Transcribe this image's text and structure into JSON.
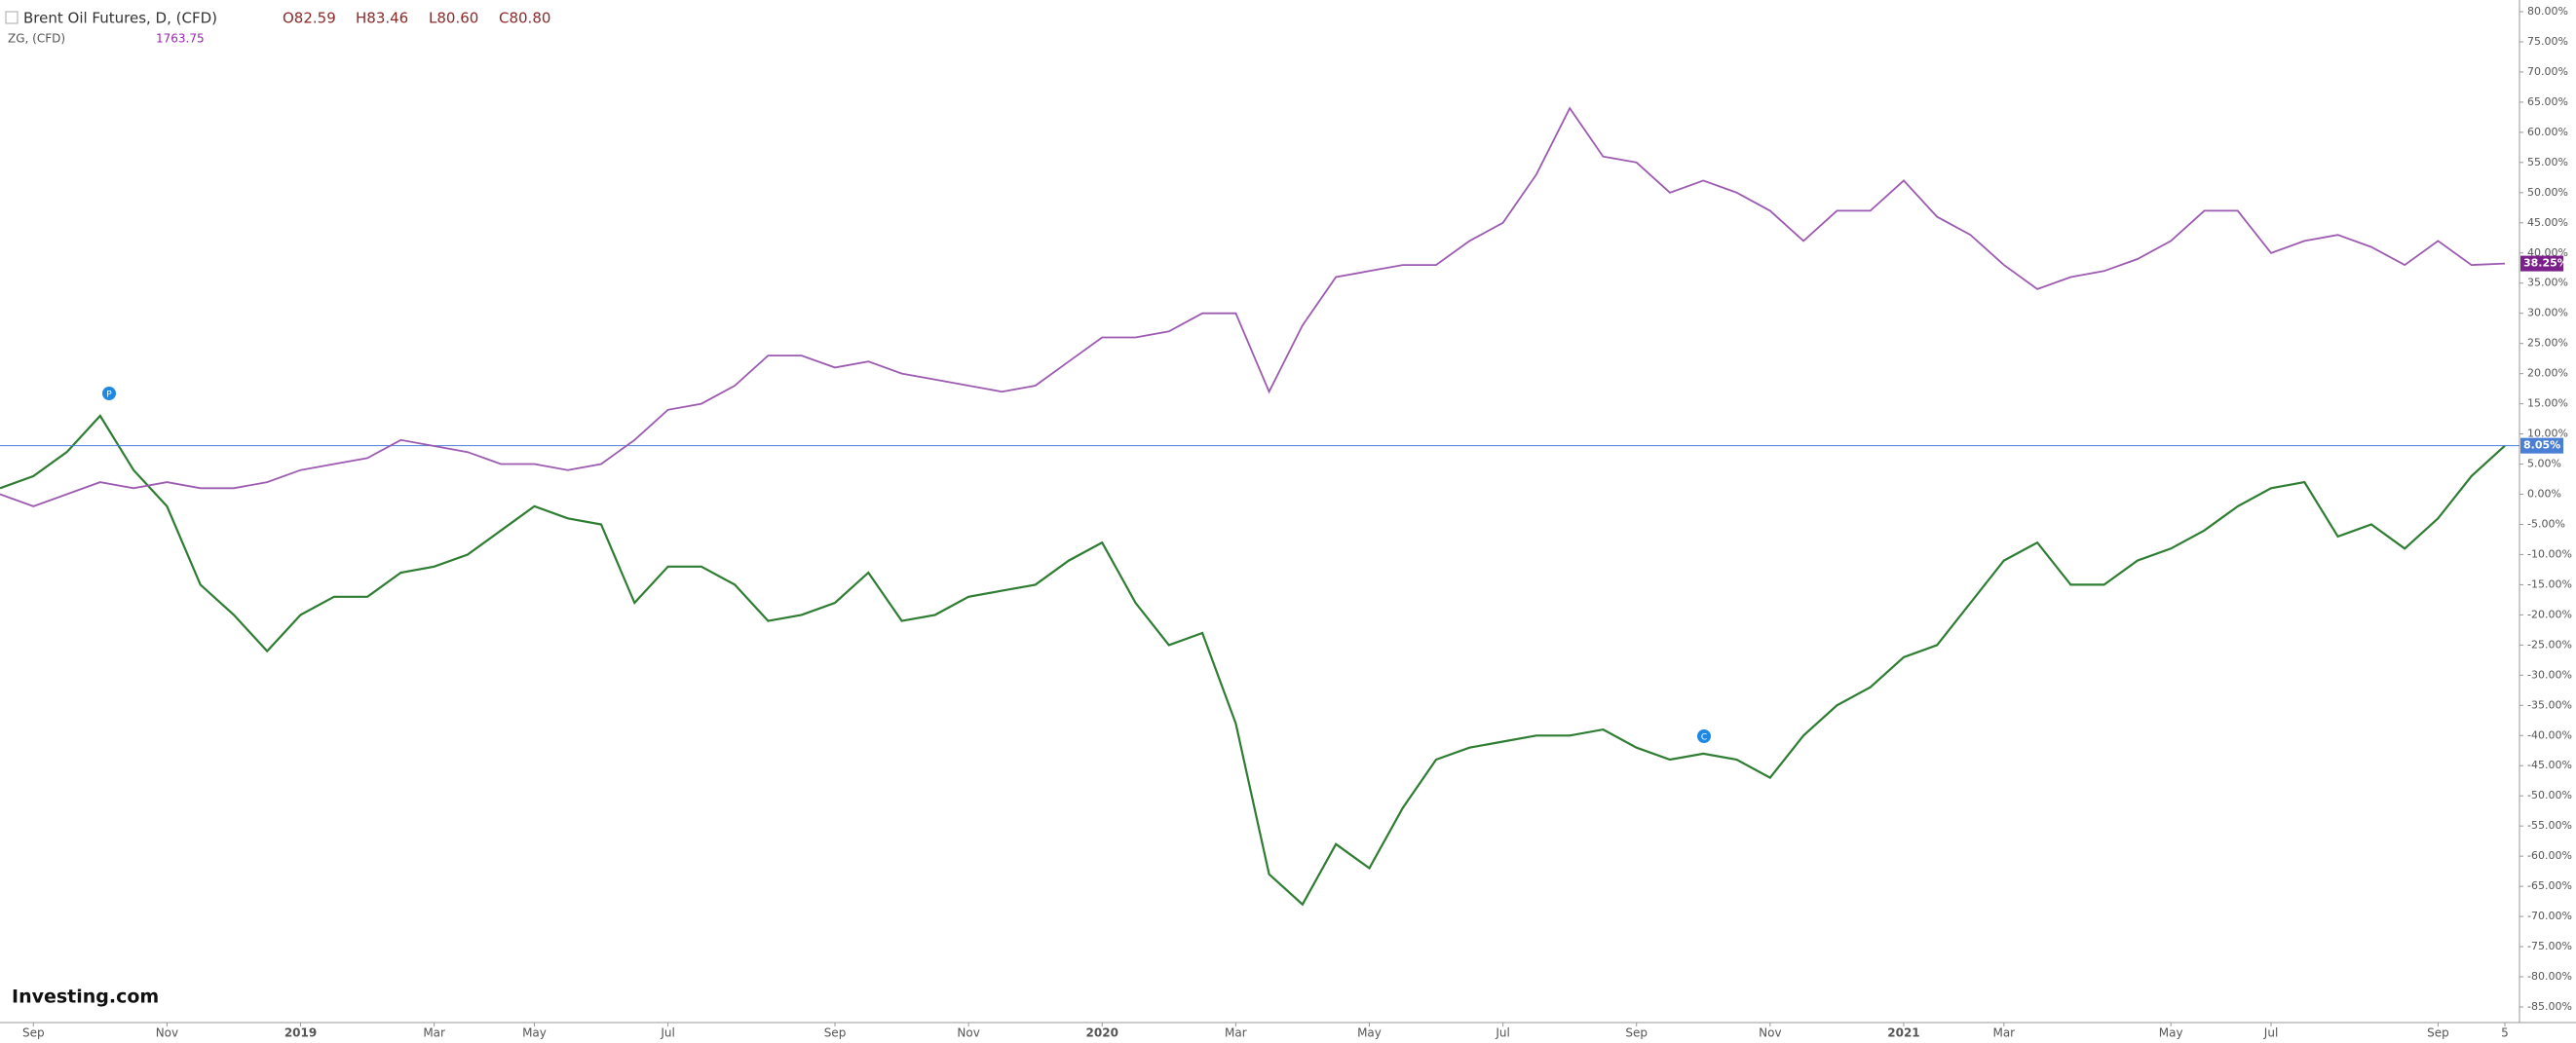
{
  "header": {
    "symbol": "Brent Oil Futures, D, (CFD)",
    "open": "O82.59",
    "high": "H83.46",
    "low": "L80.60",
    "close": "C80.80",
    "compare_symbol": "ZG, (CFD)",
    "compare_value": "1763.75",
    "logo": "Investing.com",
    "markers": [
      "P",
      "C"
    ]
  },
  "chart_data": {
    "type": "line",
    "categories": [
      null,
      "Sep",
      null,
      null,
      null,
      "Nov",
      null,
      null,
      null,
      "2019",
      null,
      null,
      null,
      "Mar",
      null,
      null,
      "May",
      null,
      null,
      null,
      "Jul",
      null,
      null,
      null,
      null,
      "Sep",
      null,
      null,
      null,
      "Nov",
      null,
      null,
      null,
      "2020",
      null,
      null,
      null,
      "Mar",
      null,
      null,
      null,
      "May",
      null,
      null,
      null,
      "Jul",
      null,
      null,
      null,
      "Sep",
      null,
      null,
      null,
      "Nov",
      null,
      null,
      null,
      "2021",
      null,
      null,
      "Mar",
      null,
      null,
      null,
      null,
      "May",
      null,
      null,
      "Jul",
      null,
      null,
      null,
      null,
      "Sep",
      null,
      "5"
    ],
    "series": [
      {
        "name": "Brent Oil Futures",
        "color": "#2e7d32",
        "values": [
          1,
          3,
          7,
          13,
          4,
          -2,
          -15,
          -20,
          -26,
          -20,
          -17,
          -17,
          -13,
          -12,
          -10,
          -6,
          -2,
          -4,
          -5,
          -18,
          -12,
          -12,
          -15,
          -21,
          -20,
          -18,
          -13,
          -21,
          -20,
          -17,
          -16,
          -15,
          -11,
          -8,
          -18,
          -25,
          -23,
          -38,
          -63,
          -68,
          -58,
          -62,
          -52,
          -44,
          -42,
          -41,
          -40,
          -40,
          -39,
          -42,
          -44,
          -43,
          -44,
          -47,
          -40,
          -35,
          -32,
          -27,
          -25,
          -18,
          -11,
          -8,
          -15,
          -15,
          -11,
          -9,
          -6,
          -2,
          1,
          2,
          -7,
          -5,
          -9,
          -4,
          3,
          8.05
        ],
        "value_labels": [
          null,
          null,
          null,
          null,
          null,
          null,
          null,
          null,
          null,
          null,
          null,
          null,
          null,
          null,
          null,
          null,
          null,
          null,
          null,
          null,
          null,
          null,
          null,
          null,
          null,
          null,
          null,
          null,
          null,
          null,
          null,
          null,
          null,
          null,
          null,
          null,
          null,
          null,
          null,
          null,
          null,
          null,
          null,
          null,
          null,
          null,
          null,
          null,
          null,
          null,
          null,
          null,
          null,
          null,
          null,
          null,
          null,
          null,
          null,
          null,
          null,
          null,
          null,
          null,
          null,
          null,
          null,
          null,
          null,
          null,
          null,
          null,
          null,
          null,
          null,
          "8.05%"
        ]
      },
      {
        "name": "ZG",
        "color": "#9c5bb0",
        "values": [
          0,
          -2,
          0,
          2,
          1,
          2,
          1,
          1,
          2,
          4,
          5,
          6,
          9,
          8,
          7,
          5,
          5,
          4,
          5,
          9,
          14,
          15,
          18,
          23,
          23,
          21,
          22,
          20,
          19,
          18,
          17,
          18,
          22,
          26,
          26,
          27,
          30,
          30,
          17,
          28,
          36,
          37,
          38,
          38,
          42,
          45,
          53,
          64,
          56,
          55,
          50,
          52,
          50,
          47,
          42,
          47,
          47,
          52,
          46,
          43,
          38,
          34,
          36,
          37,
          39,
          42,
          47,
          47,
          40,
          42,
          43,
          41,
          38,
          42,
          38,
          38.25
        ],
        "value_labels": [
          null,
          null,
          null,
          null,
          null,
          null,
          null,
          null,
          null,
          null,
          null,
          null,
          null,
          null,
          null,
          null,
          null,
          null,
          null,
          null,
          null,
          null,
          null,
          null,
          null,
          null,
          null,
          null,
          null,
          null,
          null,
          null,
          null,
          null,
          null,
          null,
          null,
          null,
          null,
          null,
          null,
          null,
          null,
          null,
          null,
          null,
          null,
          null,
          null,
          null,
          null,
          null,
          null,
          null,
          null,
          null,
          null,
          null,
          null,
          null,
          null,
          null,
          null,
          null,
          null,
          null,
          null,
          null,
          null,
          null,
          null,
          null,
          null,
          null,
          null,
          "38.25%"
        ]
      }
    ],
    "ylim": [
      -85,
      80
    ],
    "yticks": [
      {
        "value": 80,
        "label": "80.00%"
      },
      {
        "value": 75,
        "label": "75.00%"
      },
      {
        "value": 70,
        "label": "70.00%"
      },
      {
        "value": 65,
        "label": "65.00%"
      },
      {
        "value": 60,
        "label": "60.00%"
      },
      {
        "value": 55,
        "label": "55.00%"
      },
      {
        "value": 50,
        "label": "50.00%"
      },
      {
        "value": 45,
        "label": "45.00%"
      },
      {
        "value": 40,
        "label": "40.00%"
      },
      {
        "value": 35,
        "label": "35.00%"
      },
      {
        "value": 30,
        "label": "30.00%"
      },
      {
        "value": 25,
        "label": "25.00%"
      },
      {
        "value": 20,
        "label": "20.00%"
      },
      {
        "value": 15,
        "label": "15.00%"
      },
      {
        "value": 10,
        "label": "10.00%"
      },
      {
        "value": 5,
        "label": "5.00%"
      },
      {
        "value": 0,
        "label": "0.00%"
      },
      {
        "value": -5,
        "label": "-5.00%"
      },
      {
        "value": -10,
        "label": "-10.00%"
      },
      {
        "value": -15,
        "label": "-15.00%"
      },
      {
        "value": -20,
        "label": "-20.00%"
      },
      {
        "value": -25,
        "label": "-25.00%"
      },
      {
        "value": -30,
        "label": "-30.00%"
      },
      {
        "value": -35,
        "label": "-35.00%"
      },
      {
        "value": -40,
        "label": "-40.00%"
      },
      {
        "value": -45,
        "label": "-45.00%"
      },
      {
        "value": -50,
        "label": "-50.00%"
      },
      {
        "value": -55,
        "label": "-55.00%"
      },
      {
        "value": -60,
        "label": "-60.00%"
      },
      {
        "value": -65,
        "label": "-65.00%"
      },
      {
        "value": -70,
        "label": "-70.00%"
      },
      {
        "value": -75,
        "label": "-75.00%"
      },
      {
        "value": -80,
        "label": "-80.00%"
      },
      {
        "value": -85,
        "label": "-85.00%"
      }
    ],
    "price_line_color": "#4a7fd6"
  }
}
